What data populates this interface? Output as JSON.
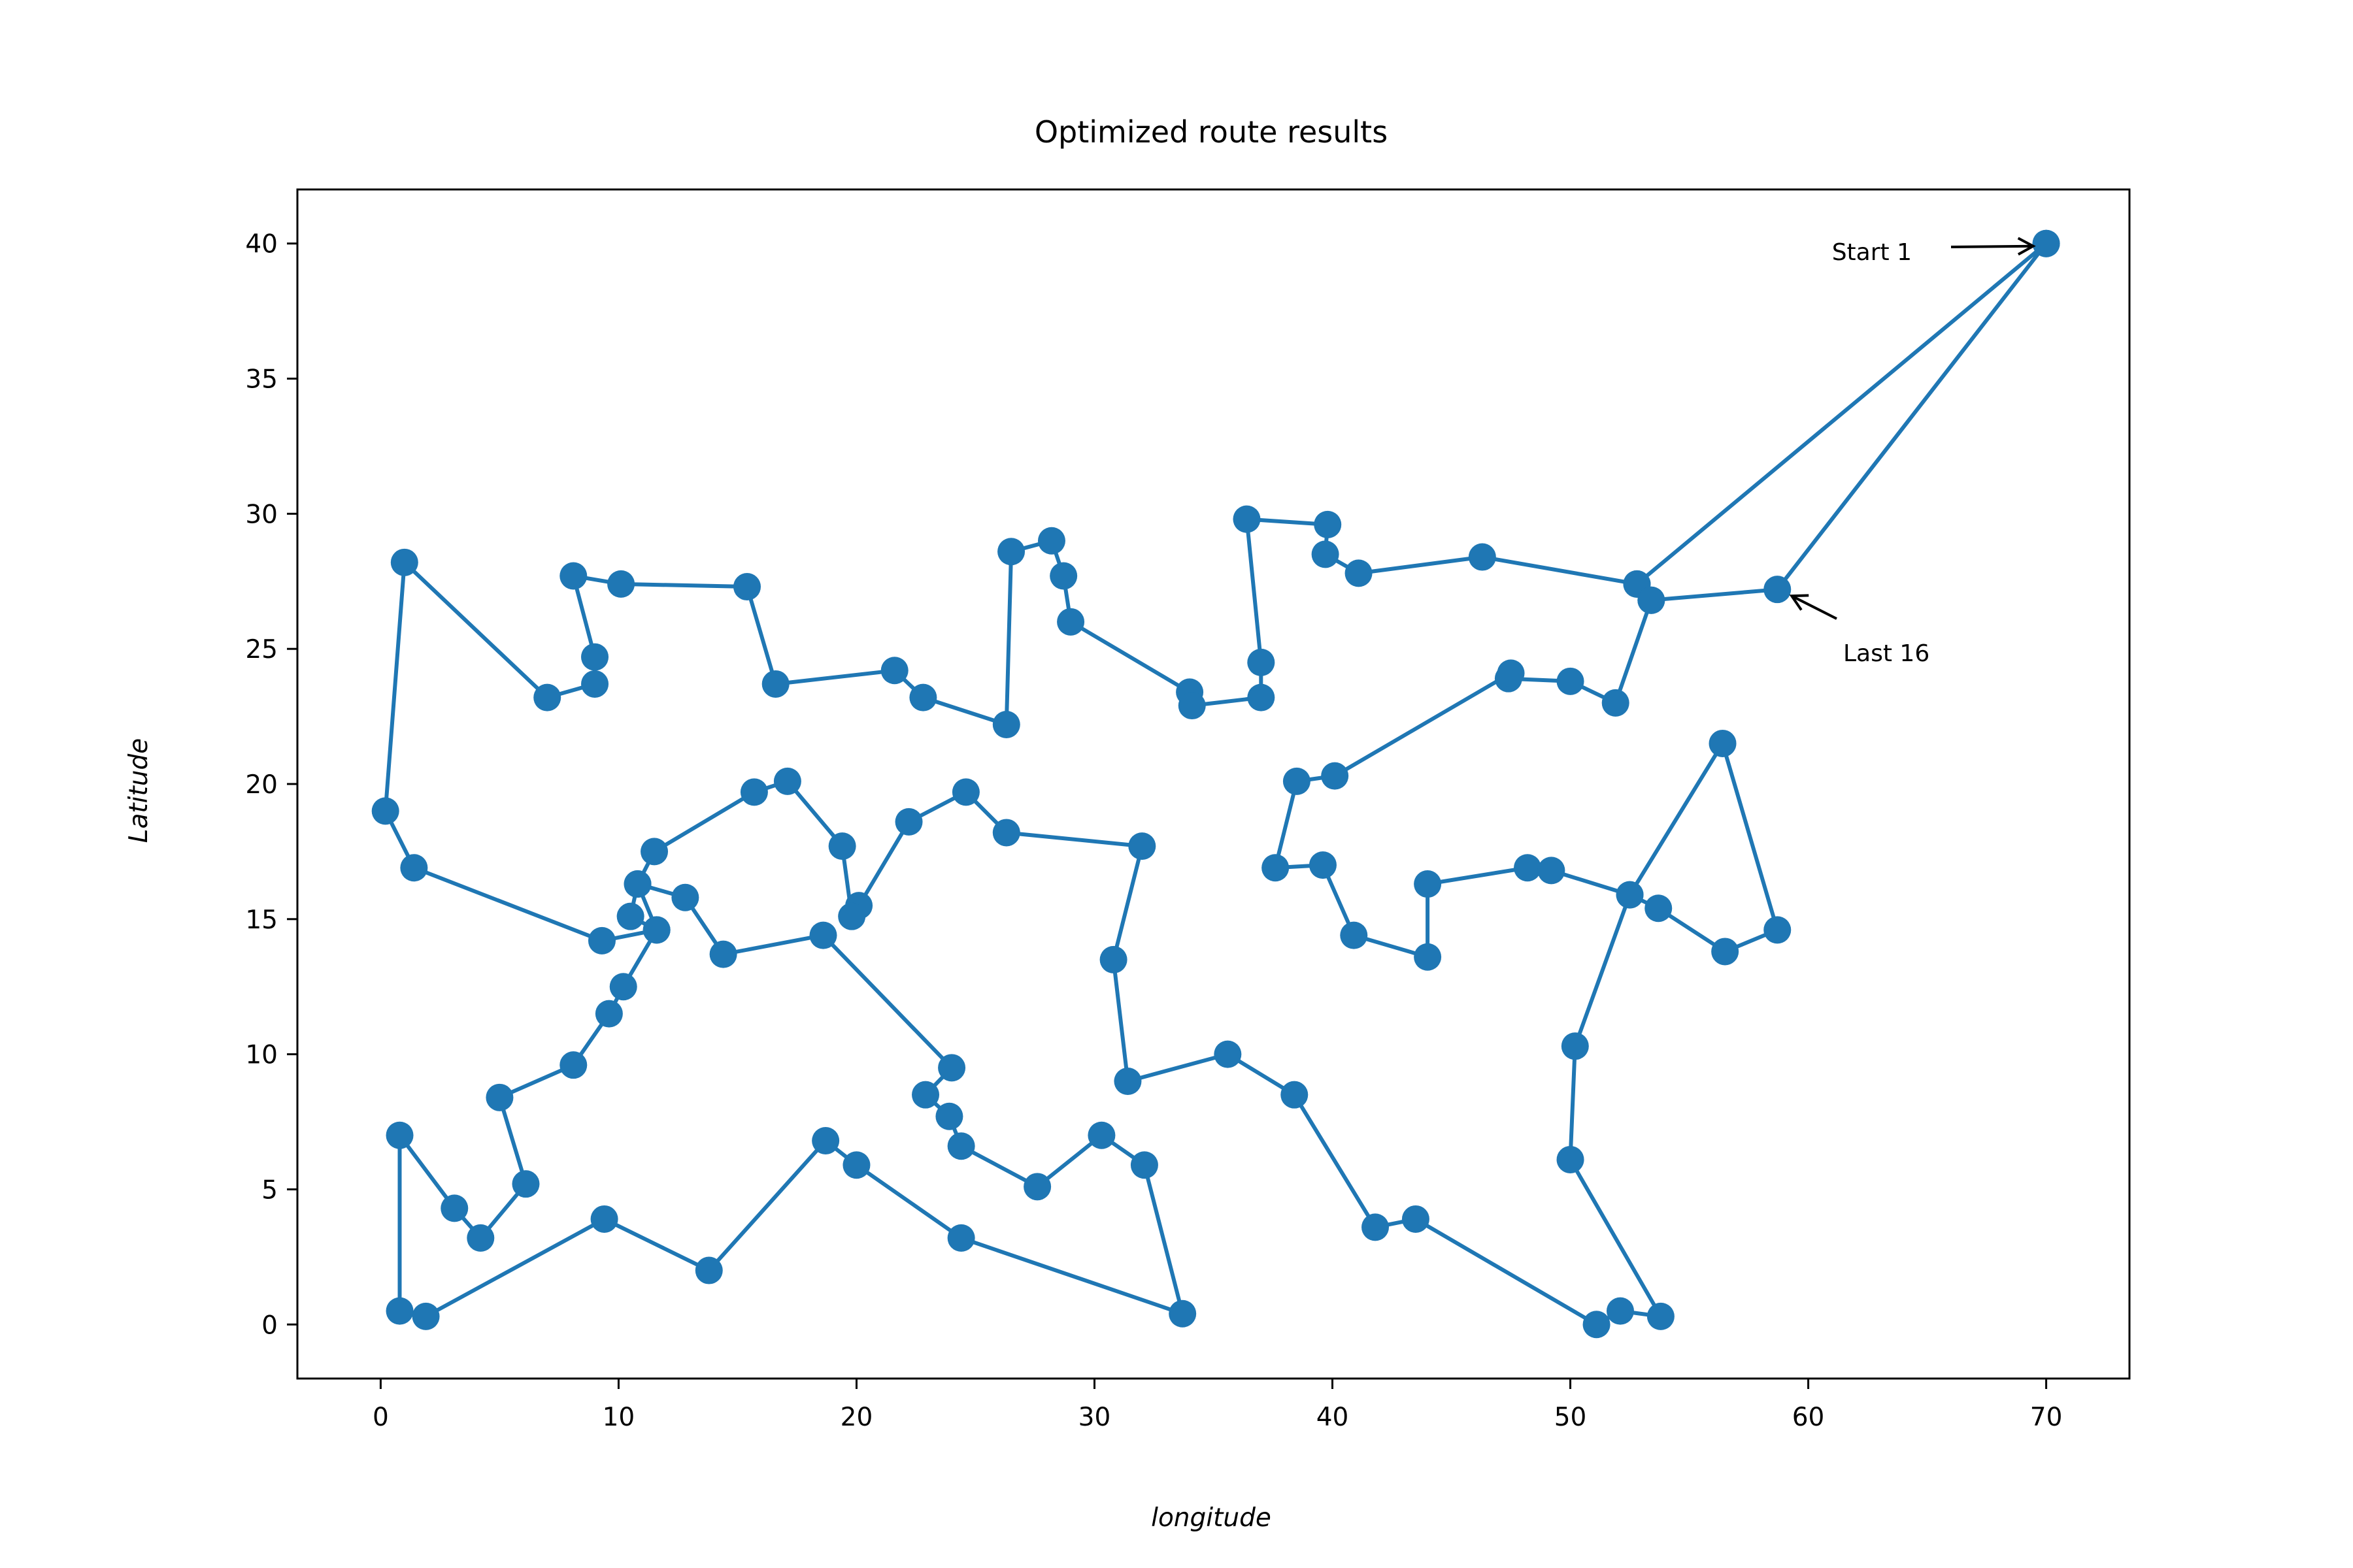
{
  "chart_data": {
    "type": "line",
    "title": "Optimized route results",
    "xlabel": "longitude",
    "ylabel": "Latitude",
    "xlim": [
      -3.5,
      73.5
    ],
    "ylim": [
      -2,
      42
    ],
    "xticks": [
      0,
      10,
      20,
      30,
      40,
      50,
      60,
      70
    ],
    "yticks": [
      0,
      5,
      10,
      15,
      20,
      25,
      30,
      35,
      40
    ],
    "grid": false,
    "colors": {
      "series": "#1f77b4",
      "axes": "#000000"
    },
    "annotations": [
      {
        "text": "Start 1",
        "x": 70.0,
        "y": 40.0
      },
      {
        "text": "Last 16",
        "x": 58.7,
        "y": 27.2
      }
    ],
    "series": [
      {
        "markers": true,
        "points": [
          [
            70.0,
            40.0
          ],
          [
            52.8,
            27.4
          ],
          [
            53.4,
            26.8
          ],
          [
            51.9,
            23.0
          ],
          [
            50.0,
            23.8
          ],
          [
            47.4,
            23.9
          ],
          [
            47.5,
            24.1
          ],
          [
            40.1,
            20.3
          ],
          [
            38.5,
            20.1
          ],
          [
            37.6,
            16.9
          ],
          [
            39.6,
            17.0
          ],
          [
            40.9,
            14.4
          ],
          [
            44.0,
            13.6
          ],
          [
            44.0,
            16.3
          ],
          [
            48.2,
            16.9
          ],
          [
            49.2,
            16.8
          ],
          [
            52.5,
            15.9
          ],
          [
            53.7,
            15.4
          ],
          [
            56.5,
            13.8
          ],
          [
            58.7,
            14.6
          ],
          [
            56.4,
            21.5
          ],
          [
            52.5,
            15.9
          ],
          [
            50.2,
            10.3
          ],
          [
            50.0,
            6.1
          ],
          [
            53.8,
            0.3
          ],
          [
            52.1,
            0.5
          ],
          [
            51.1,
            0.0
          ],
          [
            43.5,
            3.9
          ],
          [
            41.8,
            3.6
          ],
          [
            38.4,
            8.5
          ],
          [
            35.6,
            10.0
          ],
          [
            31.4,
            9.0
          ],
          [
            30.8,
            13.5
          ],
          [
            32.0,
            17.7
          ],
          [
            26.3,
            18.2
          ],
          [
            24.6,
            19.7
          ],
          [
            22.2,
            18.6
          ],
          [
            20.1,
            15.5
          ],
          [
            19.8,
            15.1
          ],
          [
            19.4,
            17.7
          ],
          [
            17.1,
            20.1
          ],
          [
            15.7,
            19.7
          ],
          [
            11.5,
            17.5
          ],
          [
            10.8,
            16.3
          ],
          [
            10.5,
            15.1
          ],
          [
            11.6,
            14.6
          ],
          [
            10.8,
            16.3
          ],
          [
            12.8,
            15.8
          ],
          [
            14.4,
            13.7
          ],
          [
            18.6,
            14.4
          ],
          [
            24.0,
            9.5
          ],
          [
            22.9,
            8.5
          ],
          [
            23.9,
            7.7
          ],
          [
            24.4,
            6.6
          ],
          [
            27.6,
            5.1
          ],
          [
            30.3,
            7.0
          ],
          [
            32.1,
            5.9
          ],
          [
            33.7,
            0.4
          ],
          [
            24.4,
            3.2
          ],
          [
            20.0,
            5.9
          ],
          [
            18.7,
            6.8
          ],
          [
            13.8,
            2.0
          ],
          [
            9.4,
            3.9
          ],
          [
            1.9,
            0.3
          ],
          [
            0.8,
            0.5
          ],
          [
            0.8,
            7.0
          ],
          [
            3.1,
            4.3
          ],
          [
            4.2,
            3.2
          ],
          [
            6.1,
            5.2
          ],
          [
            5.0,
            8.4
          ],
          [
            8.1,
            9.6
          ],
          [
            9.6,
            11.5
          ],
          [
            10.2,
            12.5
          ],
          [
            11.6,
            14.6
          ],
          [
            9.3,
            14.2
          ],
          [
            1.4,
            16.9
          ],
          [
            0.2,
            19.0
          ],
          [
            1.0,
            28.2
          ],
          [
            7.0,
            23.2
          ],
          [
            9.0,
            23.7
          ],
          [
            9.0,
            24.7
          ],
          [
            8.1,
            27.7
          ],
          [
            10.1,
            27.4
          ],
          [
            15.4,
            27.3
          ],
          [
            16.6,
            23.7
          ],
          [
            21.6,
            24.2
          ],
          [
            22.8,
            23.2
          ],
          [
            26.3,
            22.2
          ],
          [
            26.5,
            28.6
          ],
          [
            28.2,
            29.0
          ],
          [
            28.7,
            27.7
          ],
          [
            29.0,
            26.0
          ],
          [
            34.0,
            23.4
          ],
          [
            34.1,
            22.9
          ],
          [
            37.0,
            23.2
          ],
          [
            37.0,
            24.5
          ],
          [
            36.4,
            29.8
          ],
          [
            39.8,
            29.6
          ],
          [
            39.7,
            28.5
          ],
          [
            41.1,
            27.8
          ],
          [
            46.3,
            28.4
          ],
          [
            52.8,
            27.4
          ],
          [
            53.4,
            26.8
          ],
          [
            58.7,
            27.2
          ],
          [
            70.0,
            40.0
          ]
        ]
      }
    ]
  }
}
